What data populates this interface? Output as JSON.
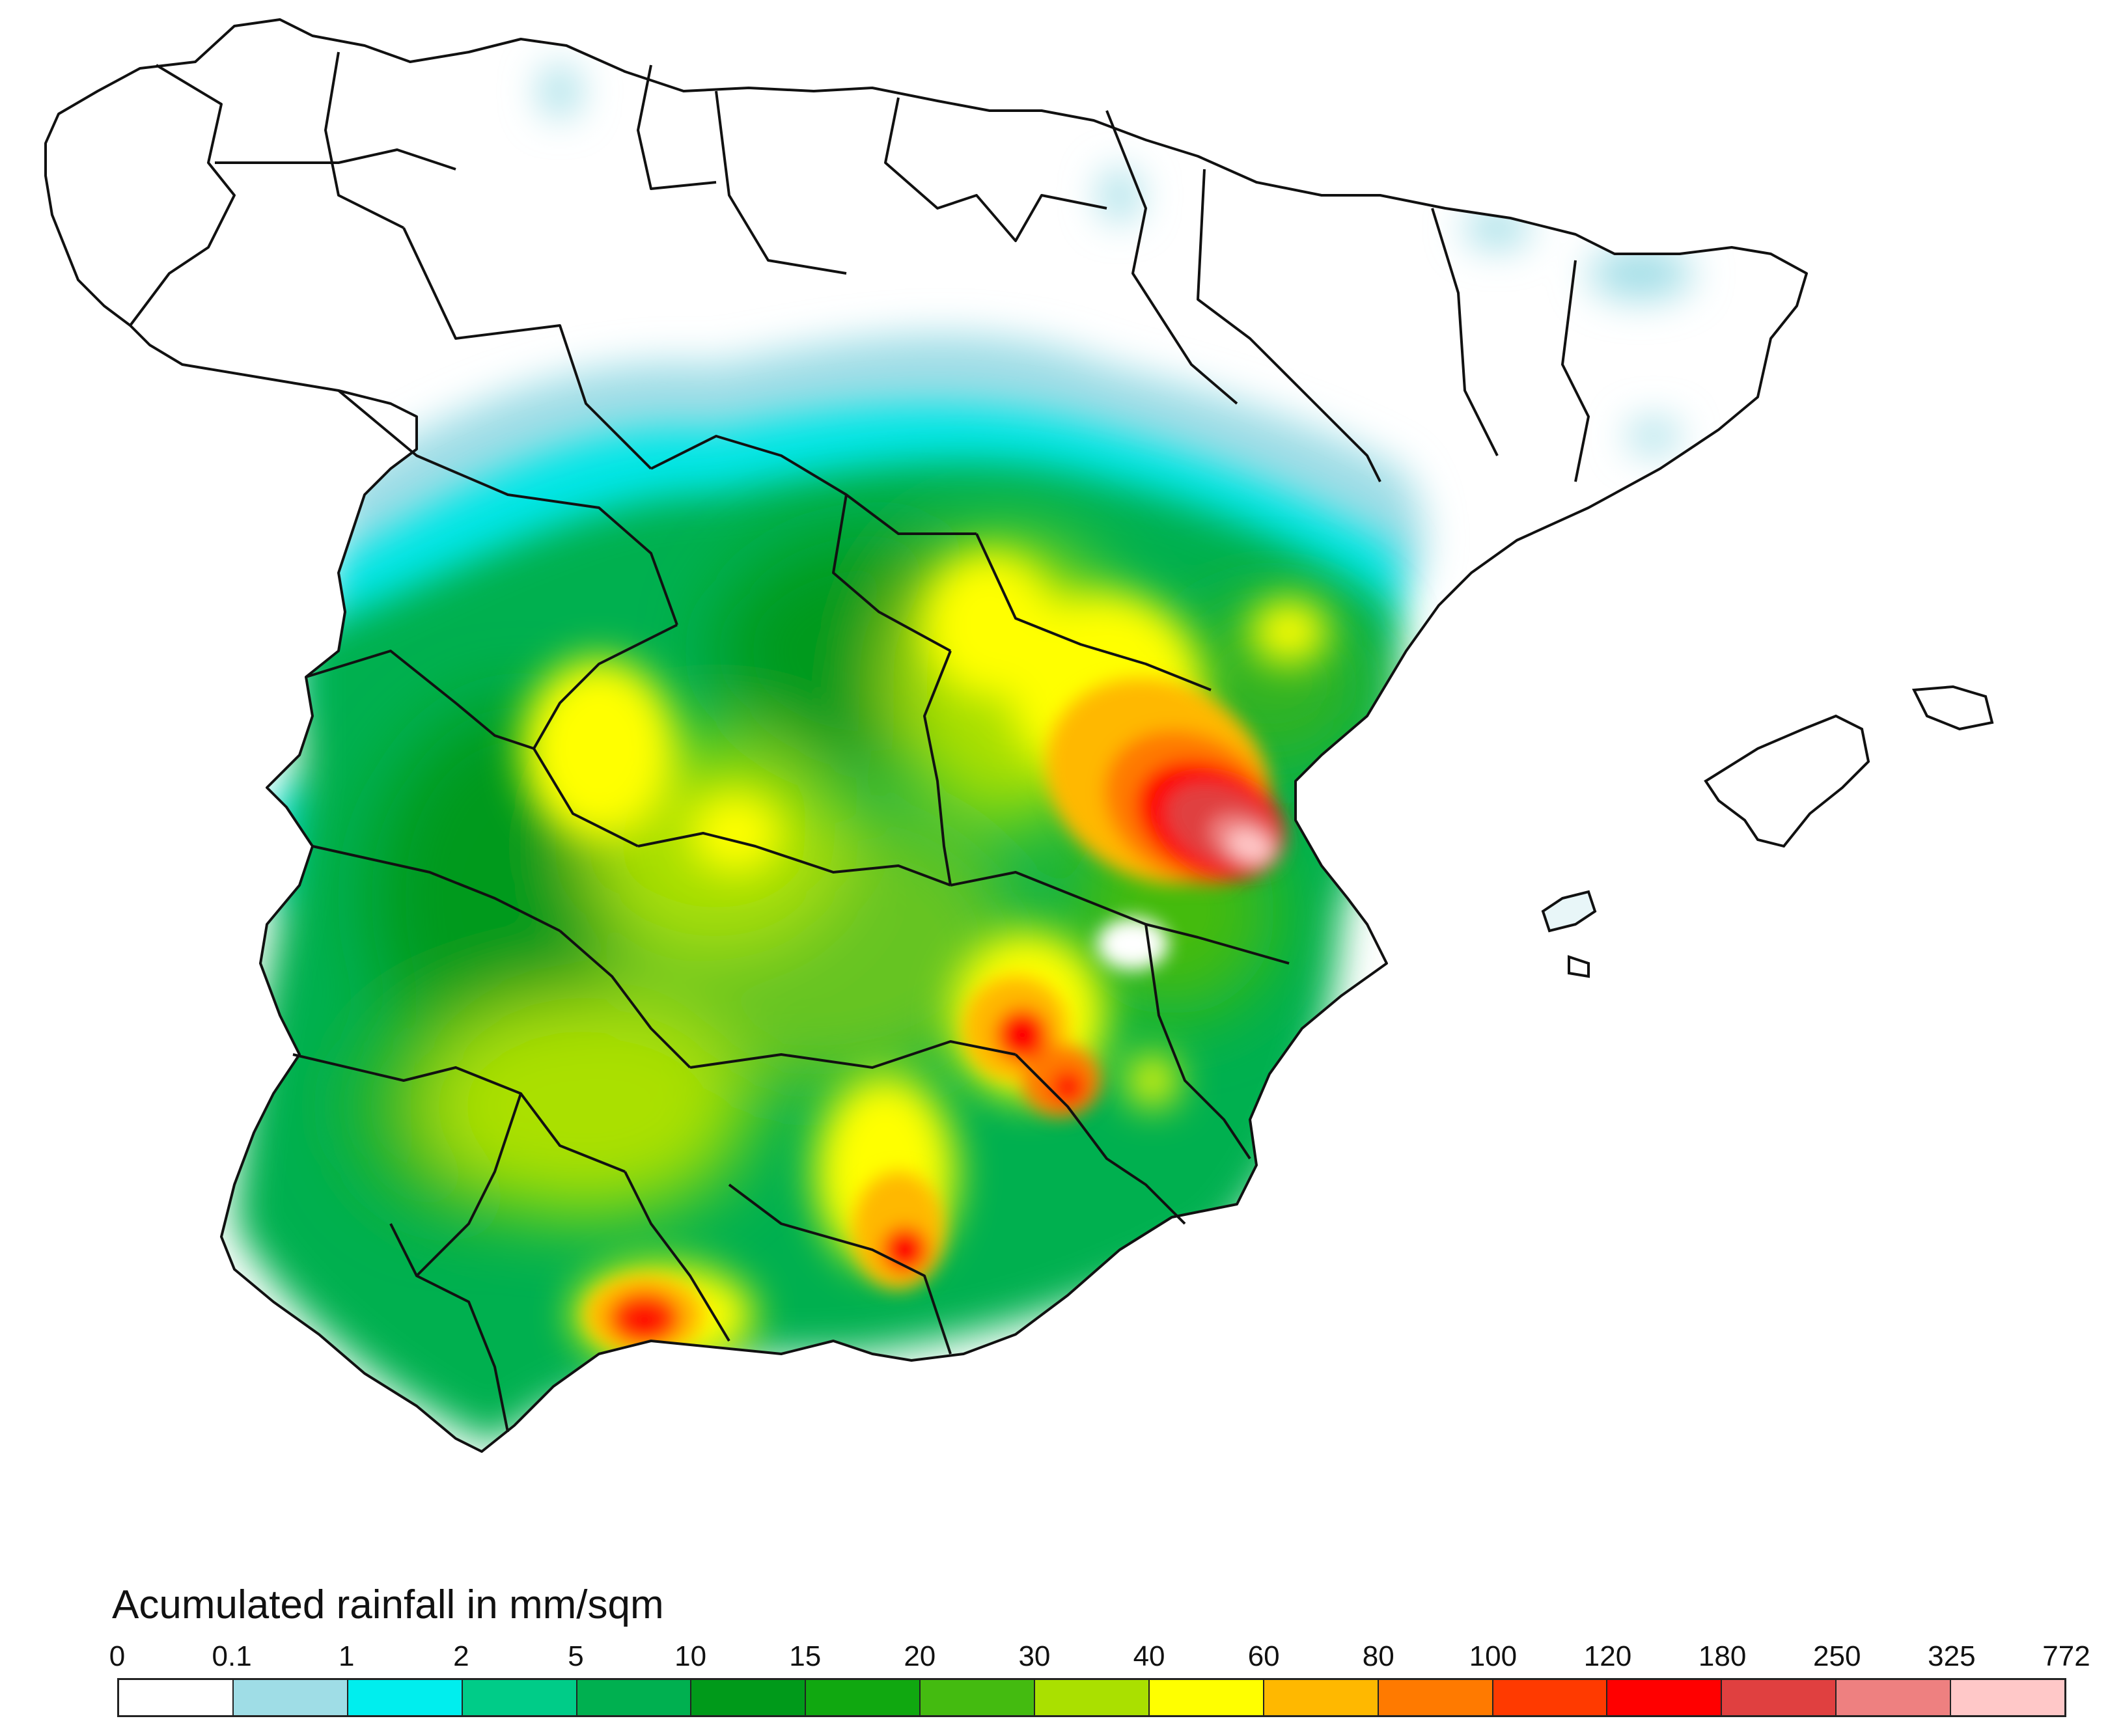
{
  "map": {
    "region": "Iberian Peninsula (Spain)",
    "regions": {
      "peninsula": "mainland",
      "mallorca": "Mallorca",
      "menorca": "Menorca",
      "ibiza": "Ibiza"
    },
    "rain_maxima": [
      {
        "name": "east coast maximum (Valencia)",
        "level": "325-772"
      },
      {
        "name": "southeast maximum",
        "level": "120-180"
      },
      {
        "name": "south maximum",
        "level": "120-180"
      },
      {
        "name": "southwest maximum",
        "level": "120-180"
      }
    ]
  },
  "legend": {
    "title": "Acumulated rainfall in mm/sqm",
    "ticks": [
      "0",
      "0.1",
      "1",
      "2",
      "5",
      "10",
      "15",
      "20",
      "30",
      "40",
      "60",
      "80",
      "100",
      "120",
      "180",
      "250",
      "325",
      "772"
    ],
    "colors": [
      "#ffffff",
      "#9fdde6",
      "#00eeee",
      "#00cc88",
      "#00b050",
      "#009a1a",
      "#10a810",
      "#44bb10",
      "#aae000",
      "#ffff00",
      "#ffb800",
      "#ff7a00",
      "#ff3a00",
      "#ff0000",
      "#e04040",
      "#ee8080",
      "#ffc8c8"
    ]
  }
}
